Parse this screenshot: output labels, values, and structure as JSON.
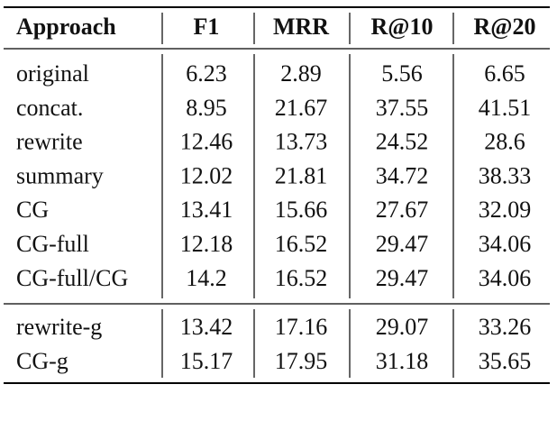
{
  "table": {
    "header": [
      "Approach",
      "F1",
      "MRR",
      "R@10",
      "R@20"
    ],
    "groups": [
      {
        "rows": [
          [
            "original",
            6.23,
            2.89,
            5.56,
            6.65
          ],
          [
            "concat.",
            8.95,
            21.67,
            37.55,
            41.51
          ],
          [
            "rewrite",
            12.46,
            13.73,
            24.52,
            28.6
          ],
          [
            "summary",
            12.02,
            21.81,
            34.72,
            38.33
          ],
          [
            "CG",
            13.41,
            15.66,
            27.67,
            32.09
          ],
          [
            "CG-full",
            12.18,
            16.52,
            29.47,
            34.06
          ],
          [
            "CG-full/CG",
            14.2,
            16.52,
            29.47,
            34.06
          ]
        ]
      },
      {
        "rows": [
          [
            "rewrite-g",
            13.42,
            17.16,
            29.07,
            33.26
          ],
          [
            "CG-g",
            15.17,
            17.95,
            31.18,
            35.65
          ]
        ]
      }
    ]
  }
}
